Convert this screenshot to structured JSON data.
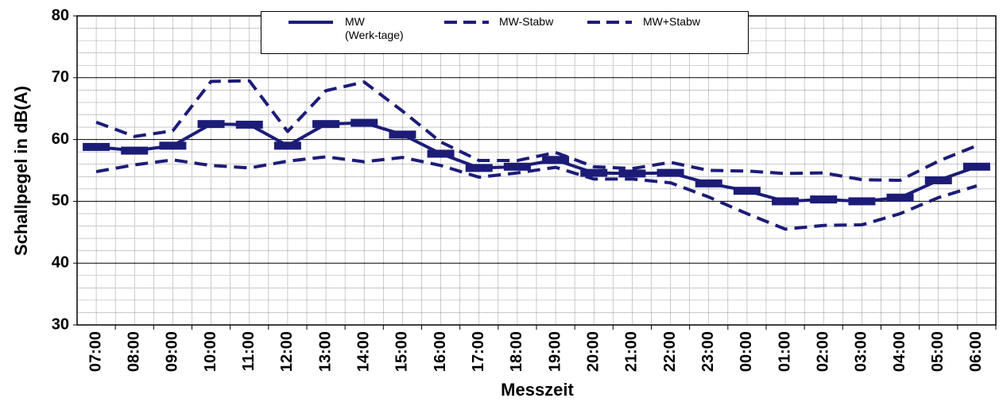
{
  "chart_data": {
    "type": "line",
    "y_label": "Schallpegel in dB(A)",
    "x_label": "Messzeit",
    "categories": [
      "07:00",
      "08:00",
      "09:00",
      "10:00",
      "11:00",
      "12:00",
      "13:00",
      "14:00",
      "15:00",
      "16:00",
      "17:00",
      "18:00",
      "19:00",
      "20:00",
      "21:00",
      "22:00",
      "23:00",
      "00:00",
      "01:00",
      "02:00",
      "03:00",
      "04:00",
      "05:00",
      "06:00"
    ],
    "series": [
      {
        "name": "MW\n(Werk-tage)",
        "color": "#1c1c78",
        "dash": false,
        "marker": true,
        "values": [
          58.8,
          58.2,
          59.0,
          62.5,
          62.4,
          59.0,
          62.5,
          62.7,
          60.8,
          57.7,
          55.4,
          55.6,
          56.7,
          54.6,
          54.5,
          54.6,
          52.9,
          51.7,
          50.0,
          50.3,
          50.0,
          50.6,
          53.4,
          55.6
        ]
      },
      {
        "name": "MW-Stabw",
        "color": "#1c1c78",
        "dash": true,
        "marker": false,
        "values": [
          54.8,
          55.9,
          56.7,
          55.8,
          55.4,
          56.5,
          57.2,
          56.4,
          57.1,
          55.8,
          53.9,
          54.6,
          55.5,
          53.6,
          53.6,
          53.0,
          50.7,
          48.0,
          45.5,
          46.1,
          46.2,
          48.0,
          50.6,
          52.5
        ]
      },
      {
        "name": "MW+Stabw",
        "color": "#1c1c78",
        "dash": true,
        "marker": false,
        "values": [
          62.8,
          60.5,
          61.4,
          69.4,
          69.5,
          61.3,
          67.9,
          69.3,
          64.6,
          59.6,
          56.6,
          56.6,
          57.9,
          55.6,
          55.3,
          56.3,
          55.0,
          54.9,
          54.5,
          54.6,
          53.5,
          53.4,
          56.5,
          59.0
        ]
      }
    ],
    "ylim": [
      30,
      80
    ],
    "yticks": [
      30,
      40,
      50,
      60,
      70,
      80
    ],
    "grid": true
  }
}
